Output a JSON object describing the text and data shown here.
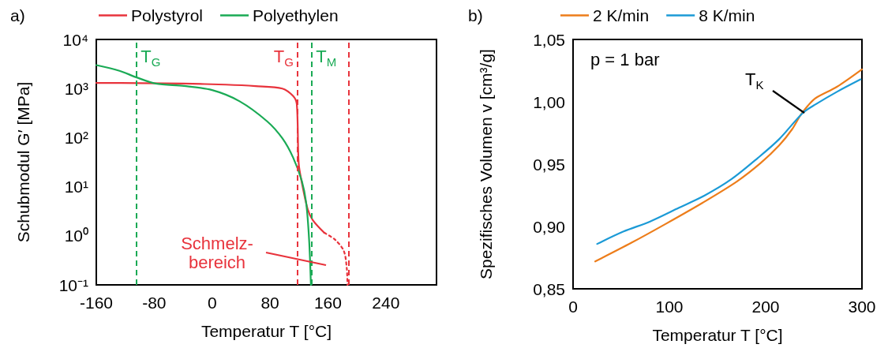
{
  "chart_data": [
    {
      "type": "line",
      "title": "a)",
      "xlabel": "Temperatur T [°C]",
      "ylabel": "Schubmodul G′ [MPa]",
      "log": "y",
      "legend": "top",
      "xlim": [
        -160,
        310
      ],
      "xticks": [
        -160,
        -80,
        0,
        80,
        160,
        240
      ],
      "ylim": [
        0.1,
        10000
      ],
      "yticks": [
        {
          "value": 0.1,
          "label": "10⁻¹"
        },
        {
          "value": 1,
          "label": "10⁰"
        },
        {
          "value": 10,
          "label": "10¹"
        },
        {
          "value": 100,
          "label": "10²"
        },
        {
          "value": 1000,
          "label": "10³"
        },
        {
          "value": 10000,
          "label": "10⁴"
        }
      ],
      "series": [
        {
          "name": "Polystyrol",
          "color": "#e8333c",
          "x": [
            -160,
            -100,
            -40,
            19,
            60,
            97,
            112,
            117,
            119.6,
            124,
            132,
            139,
            155
          ],
          "values": [
            1300,
            1290,
            1260,
            1200,
            1120,
            1000,
            700,
            480,
            30,
            12,
            3.5,
            2.1,
            1.15
          ]
        },
        {
          "name": "Polyethylen",
          "color": "#1aaa55",
          "x": [
            -160,
            -128,
            -105,
            -78,
            -39,
            0,
            38,
            76,
            97,
            112,
            124,
            130,
            134,
            136.5
          ],
          "values": [
            3000,
            2300,
            1700,
            1260,
            1130,
            930,
            550,
            215,
            97,
            39,
            13,
            4.6,
            0.83,
            0.1
          ]
        },
        {
          "color": "#e8333c",
          "line_style": "dotted",
          "x": [
            155,
            170,
            182,
            186,
            187
          ],
          "values": [
            1.15,
            0.83,
            0.49,
            0.22,
            0.1
          ]
        }
      ],
      "ref_lines": [
        {
          "axis": "x",
          "value": -105,
          "label": "T$_{G}$",
          "color": "#1aaa55",
          "line_style": "dashed"
        },
        {
          "axis": "x",
          "value": 118,
          "label": "T$_{G}$",
          "color": "#e8333c",
          "line_style": "dashed"
        },
        {
          "axis": "x",
          "value": 137,
          "label": "T$_{M}$",
          "color": "#1aaa55",
          "line_style": "dashed"
        },
        {
          "axis": "x",
          "value": 189,
          "color": "#e8333c",
          "line_style": "dashed"
        }
      ],
      "annotations": [
        "Schmelz-\nbereich"
      ]
    },
    {
      "type": "line",
      "title": "b)",
      "xlabel": "Temperatur T [°C]",
      "ylabel": "Spezifisches Volumen v [cm³/g]",
      "legend": "top",
      "xlim": [
        0,
        300
      ],
      "xticks": [
        0,
        100,
        200,
        300
      ],
      "ylim": [
        0.85,
        1.05
      ],
      "yticks": [
        {
          "value": 0.85,
          "label": "0,85"
        },
        {
          "value": 0.9,
          "label": "0,90"
        },
        {
          "value": 0.95,
          "label": "0,95"
        },
        {
          "value": 1.0,
          "label": "1,00"
        },
        {
          "value": 1.05,
          "label": "1,05"
        }
      ],
      "series": [
        {
          "name": "2 K/min",
          "color": "#ed7d1a",
          "x": [
            23,
            60.7,
            96,
            134.5,
            170,
            195,
            214,
            227.5,
            236,
            244,
            252,
            274,
            300
          ],
          "values": [
            0.872,
            0.887,
            0.902,
            0.919,
            0.936,
            0.951,
            0.965,
            0.978,
            0.989,
            0.997,
            1.003,
            1.012,
            1.026
          ]
        },
        {
          "name": "8 K/min",
          "color": "#1b9ad6",
          "x": [
            25,
            52.5,
            80,
            110,
            137,
            164.6,
            192,
            214,
            238.5,
            252,
            274,
            298.6
          ],
          "values": [
            0.886,
            0.896,
            0.904,
            0.915,
            0.925,
            0.938,
            0.955,
            0.97,
            0.991,
            0.998,
            1.008,
            1.018
          ]
        }
      ],
      "annotations": [
        "p = 1 bar",
        {
          "text": "T$_{K}$",
          "x": 240,
          "y": 0.991
        }
      ]
    }
  ]
}
